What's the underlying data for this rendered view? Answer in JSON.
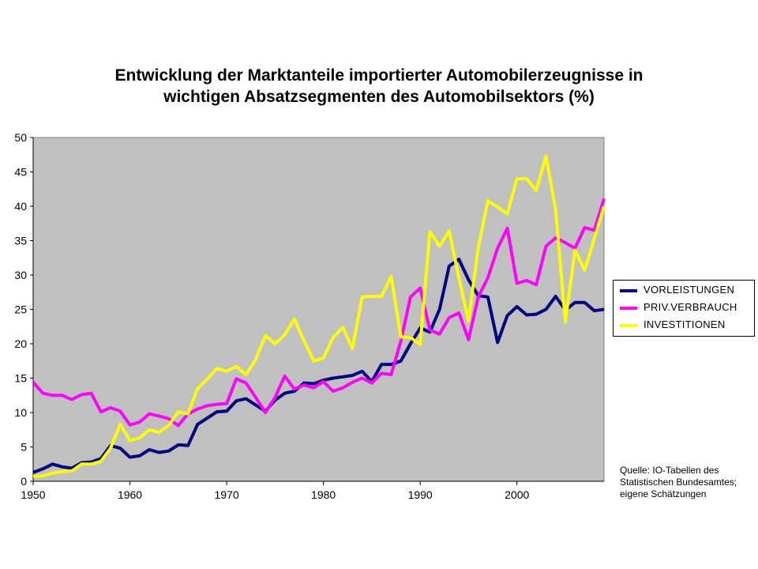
{
  "title_lines": [
    "Entwicklung der Marktanteile importierter Automobilerzeugnisse in",
    "wichtigen Absatzsegmenten des Automobilsektors (%)"
  ],
  "source_lines": [
    "Quelle: IO-Tabellen des",
    "Statistischen Bundesamtes;",
    "eigene Schätzungen"
  ],
  "chart_data": {
    "type": "line",
    "title": "Entwicklung der Marktanteile importierter Automobilerzeugnisse in wichtigen Absatzsegmenten des Automobilsektors (%)",
    "xlabel": "",
    "ylabel": "",
    "xlim": [
      1950,
      2009
    ],
    "ylim": [
      0,
      50
    ],
    "x_ticks": [
      "1950",
      "1960",
      "1970",
      "1980",
      "1990",
      "2000"
    ],
    "y_ticks": [
      "0",
      "5",
      "10",
      "15",
      "20",
      "25",
      "30",
      "35",
      "40",
      "45",
      "50"
    ],
    "grid": false,
    "plot_background": "#c0c0c0",
    "legend_position": "right",
    "x": [
      1950,
      1951,
      1952,
      1953,
      1954,
      1955,
      1956,
      1957,
      1958,
      1959,
      1960,
      1961,
      1962,
      1963,
      1964,
      1965,
      1966,
      1967,
      1968,
      1969,
      1970,
      1971,
      1972,
      1973,
      1974,
      1975,
      1976,
      1977,
      1978,
      1979,
      1980,
      1981,
      1982,
      1983,
      1984,
      1985,
      1986,
      1987,
      1988,
      1989,
      1990,
      1991,
      1992,
      1993,
      1994,
      1995,
      1996,
      1997,
      1998,
      1999,
      2000,
      2001,
      2002,
      2003,
      2004,
      2005,
      2006,
      2007,
      2008,
      2009
    ],
    "series": [
      {
        "name": "VORLEISTUNGEN",
        "color": "#000080",
        "values": [
          1.3,
          1.8,
          2.5,
          2.1,
          1.9,
          2.7,
          2.8,
          3.3,
          5.2,
          4.8,
          3.5,
          3.7,
          4.6,
          4.2,
          4.4,
          5.3,
          5.2,
          8.3,
          9.2,
          10.1,
          10.2,
          11.7,
          12.0,
          11.1,
          10.2,
          11.8,
          12.8,
          13.1,
          14.3,
          14.2,
          14.7,
          15.0,
          15.2,
          15.4,
          16.0,
          14.5,
          17.0,
          17.0,
          17.5,
          20.0,
          22.3,
          21.7,
          25.0,
          31.3,
          32.3,
          29.3,
          27.0,
          26.8,
          20.2,
          24.1,
          25.4,
          24.2,
          24.3,
          25.0,
          26.9,
          24.9,
          26.0,
          26.0,
          24.8,
          25.0
        ]
      },
      {
        "name": "PRIV.VERBRAUCH",
        "color": "#ff00ff",
        "values": [
          14.4,
          12.8,
          12.5,
          12.5,
          11.9,
          12.6,
          12.8,
          10.1,
          10.7,
          10.2,
          8.2,
          8.6,
          9.8,
          9.5,
          9.1,
          8.1,
          9.8,
          10.5,
          11.0,
          11.2,
          11.3,
          14.9,
          14.3,
          12.2,
          10.0,
          12.2,
          15.3,
          13.4,
          14.0,
          13.6,
          14.5,
          13.1,
          13.6,
          14.4,
          15.0,
          14.3,
          15.7,
          15.5,
          20.4,
          26.8,
          28.1,
          22.0,
          21.4,
          23.8,
          24.5,
          20.6,
          26.8,
          29.6,
          33.9,
          36.8,
          28.8,
          29.2,
          28.6,
          34.2,
          35.4,
          34.7,
          33.9,
          36.9,
          36.5,
          41.1
        ]
      },
      {
        "name": "INVESTITIONEN",
        "color": "#ffff00",
        "values": [
          0.7,
          0.8,
          1.2,
          1.4,
          1.5,
          2.5,
          2.5,
          2.9,
          4.8,
          8.3,
          5.9,
          6.3,
          7.5,
          7.1,
          8.1,
          10.1,
          9.8,
          13.5,
          14.9,
          16.4,
          16.0,
          16.7,
          15.5,
          17.7,
          21.2,
          20.0,
          21.3,
          23.6,
          20.4,
          17.5,
          17.9,
          20.9,
          22.4,
          19.3,
          26.8,
          26.9,
          26.9,
          29.8,
          21.0,
          20.9,
          19.9,
          36.3,
          34.2,
          36.4,
          29.6,
          23.3,
          34.0,
          40.8,
          39.9,
          38.9,
          44.0,
          44.0,
          42.3,
          47.3,
          39.5,
          23.2,
          33.6,
          30.7,
          35.3,
          40.0
        ]
      }
    ]
  }
}
